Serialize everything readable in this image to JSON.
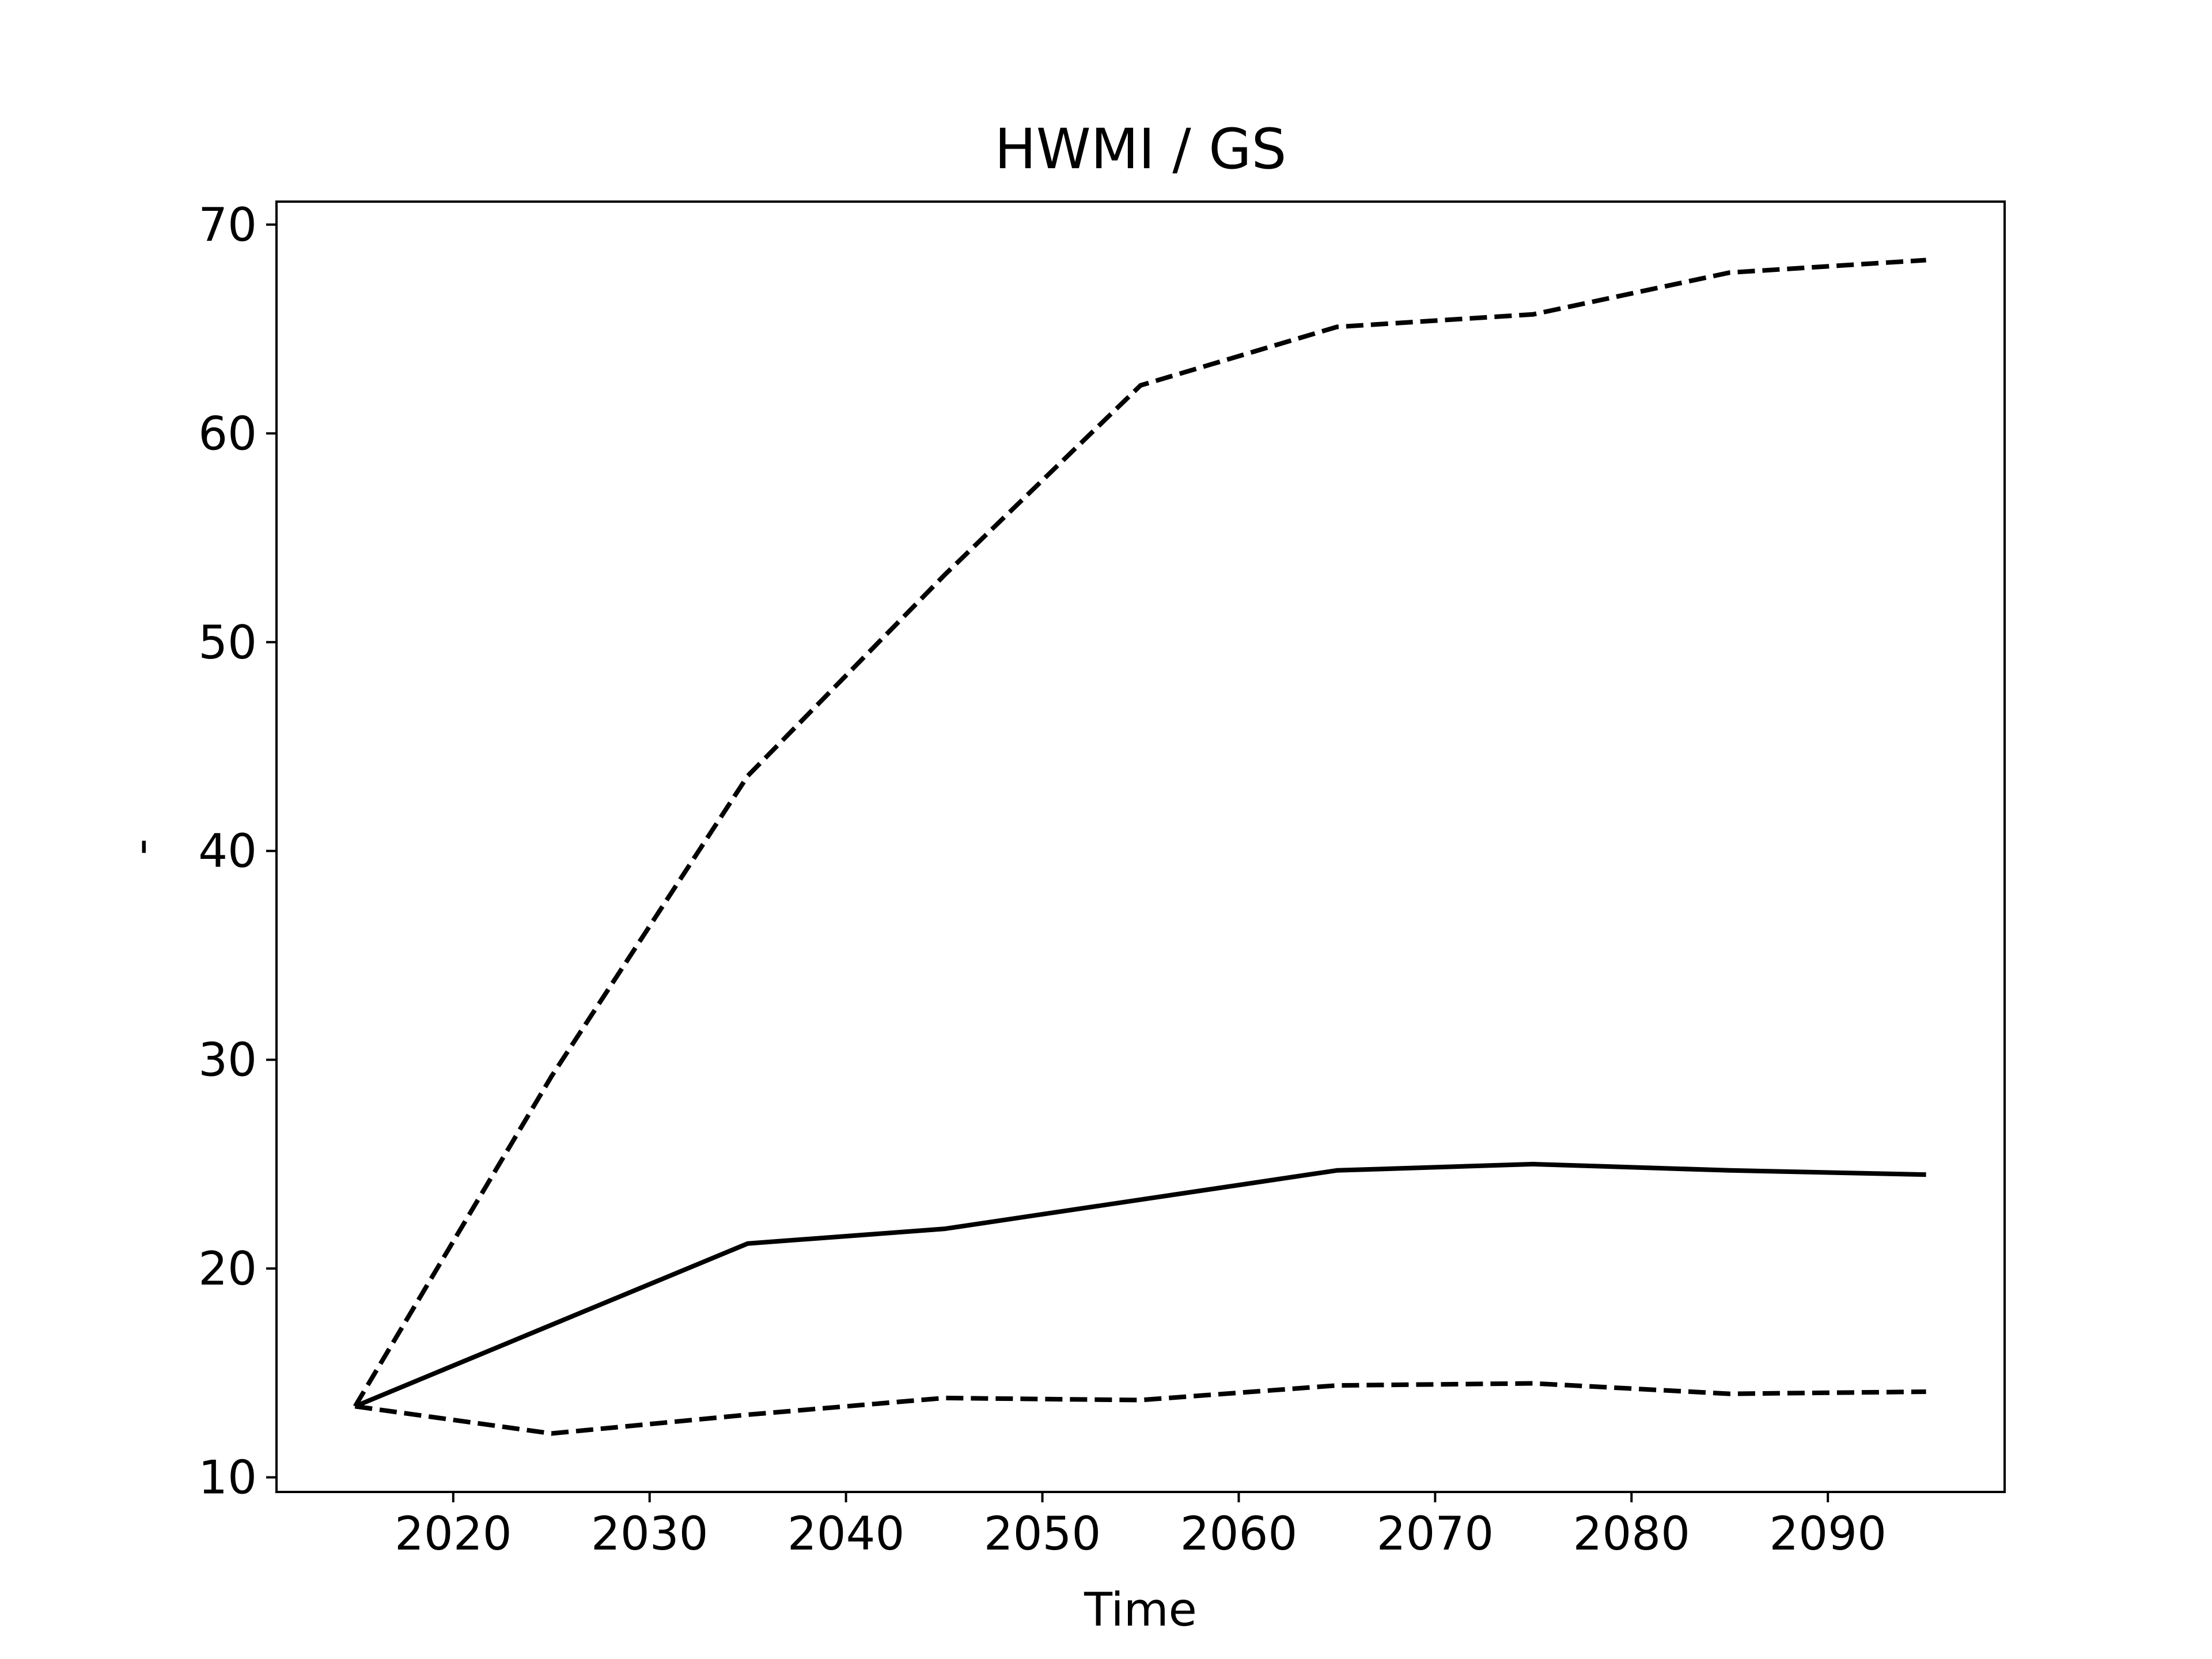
{
  "chart_data": {
    "type": "line",
    "title": "HWMI / GS",
    "xlabel": "Time",
    "ylabel": "-",
    "xlim": [
      2011,
      2099
    ],
    "ylim": [
      9.3,
      71.1
    ],
    "xticks": [
      2020,
      2030,
      2040,
      2050,
      2060,
      2070,
      2080,
      2090
    ],
    "yticks": [
      10,
      20,
      30,
      40,
      50,
      60,
      70
    ],
    "grid": false,
    "legend": "none",
    "x": [
      2015,
      2025,
      2035,
      2045,
      2055,
      2065,
      2075,
      2085,
      2095
    ],
    "series": [
      {
        "style": "solid",
        "color": "#000000",
        "values": [
          13.4,
          17.3,
          21.2,
          21.9,
          23.3,
          24.7,
          25.0,
          24.7,
          24.5
        ]
      },
      {
        "style": "dashed",
        "color": "#000000",
        "values": [
          13.4,
          29.2,
          43.6,
          53.2,
          62.3,
          65.1,
          65.7,
          67.7,
          68.3
        ]
      },
      {
        "style": "dashed",
        "color": "#000000",
        "values": [
          13.4,
          12.1,
          13.0,
          13.8,
          13.7,
          14.4,
          14.5,
          14.0,
          14.1
        ]
      }
    ]
  }
}
